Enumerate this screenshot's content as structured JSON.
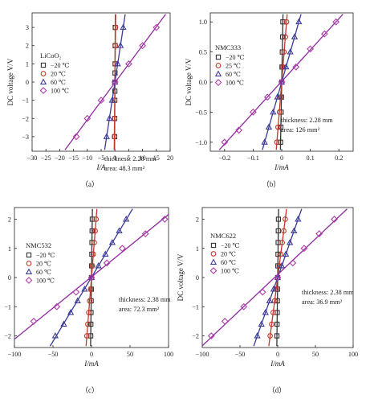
{
  "chart_data": [
    {
      "type": "scatter",
      "caption": "（a）",
      "xlabel": "I/A",
      "ylabel": "DC voltage V/V",
      "xlim": [
        -30,
        20
      ],
      "ylim": [
        -3.8,
        3.8
      ],
      "xticks": [
        -30,
        -25,
        -20,
        -15,
        -10,
        -5,
        0,
        5,
        10,
        15,
        20
      ],
      "yticks": [
        -3,
        -2,
        -1,
        0,
        1,
        2,
        3
      ],
      "legend_title": "LiCoO₂",
      "legend_position": "left",
      "annotations": [
        "thickness: 2.28 mm",
        "area: 48.3 mm²"
      ],
      "series": [
        {
          "name": "−20 ℃",
          "marker": "square",
          "color": "#333333",
          "fit_color": "#333333",
          "x": [
            0.1,
            0.08,
            0.06,
            0.03,
            0,
            -0.03,
            -0.06,
            -0.08,
            -0.1
          ],
          "y": [
            3,
            2,
            1,
            0.5,
            0,
            -0.5,
            -1,
            -2,
            -3
          ]
        },
        {
          "name": "20 ℃",
          "marker": "circle",
          "color": "#c0392b",
          "fit_color": "#c0392b",
          "x": [
            0.2,
            0.15,
            0.1,
            0,
            -0.1,
            -0.15,
            -0.2
          ],
          "y": [
            3,
            2,
            1,
            0,
            -1,
            -2,
            -3
          ]
        },
        {
          "name": "60 ℃",
          "marker": "triangle",
          "color": "#3b3b9a",
          "fit_color": "#3b3b9a",
          "x": [
            3,
            2,
            1,
            0,
            -1,
            -2,
            -3
          ],
          "y": [
            3,
            2,
            1,
            0,
            -1,
            -2,
            -3
          ]
        },
        {
          "name": "100 ℃",
          "marker": "diamond",
          "color": "#b03aa9",
          "fit_color": "#8e2aa0",
          "x": [
            15,
            10,
            5,
            0,
            -5,
            -10,
            -14
          ],
          "y": [
            3,
            2,
            1,
            0,
            -1,
            -2,
            -3
          ]
        }
      ]
    },
    {
      "type": "scatter",
      "caption": "（b）",
      "xlabel": "I/mA",
      "ylabel": "DC voltage V/V",
      "xlim": [
        -0.25,
        0.25
      ],
      "ylim": [
        -1.15,
        1.15
      ],
      "xticks": [
        -0.2,
        -0.1,
        0,
        0.1,
        0.2
      ],
      "yticks": [
        -1.0,
        -0.5,
        0,
        0.5,
        1.0
      ],
      "legend_title": "NMC333",
      "legend_position": "left",
      "annotations": [
        "thickness: 2.28 mm",
        "area: 126 mm²"
      ],
      "series": [
        {
          "name": "−20 ℃",
          "marker": "square",
          "color": "#333333",
          "fit_color": "#333333",
          "x": [
            0.004,
            0.003,
            0.002,
            0.001,
            0,
            -0.001,
            -0.002,
            -0.003,
            -0.004
          ],
          "y": [
            1,
            0.75,
            0.5,
            0.25,
            0,
            -0.25,
            -0.5,
            -0.75,
            -1
          ]
        },
        {
          "name": "25 ℃",
          "marker": "circle",
          "color": "#c0392b",
          "fit_color": "#c0392b",
          "x": [
            0.017,
            0.013,
            0.008,
            0.004,
            0,
            -0.004,
            -0.008,
            -0.013,
            -0.017
          ],
          "y": [
            1,
            0.75,
            0.5,
            0.25,
            0,
            -0.25,
            -0.5,
            -0.75,
            -1
          ]
        },
        {
          "name": "60 ℃",
          "marker": "triangle",
          "color": "#3b3b9a",
          "fit_color": "#3b3b9a",
          "x": [
            0.06,
            0.045,
            0.03,
            0.015,
            0,
            -0.015,
            -0.03,
            -0.045,
            -0.06
          ],
          "y": [
            1,
            0.75,
            0.5,
            0.25,
            0,
            -0.25,
            -0.5,
            -0.75,
            -1
          ]
        },
        {
          "name": "100 ℃",
          "marker": "diamond",
          "color": "#b03aa9",
          "fit_color": "#8e2aa0",
          "x": [
            0.19,
            0.15,
            0.1,
            0.05,
            0,
            -0.05,
            -0.1,
            -0.15,
            -0.2
          ],
          "y": [
            1,
            0.8,
            0.55,
            0.25,
            0,
            -0.25,
            -0.5,
            -0.8,
            -1
          ]
        }
      ]
    },
    {
      "type": "scatter",
      "caption": "（c）",
      "xlabel": "I/mA",
      "ylabel": "DC voltage V/V",
      "xlim": [
        -100,
        100
      ],
      "ylim": [
        -2.4,
        2.4
      ],
      "xticks": [
        -100,
        -50,
        0,
        50,
        100
      ],
      "yticks": [
        -2,
        -1,
        0,
        1,
        2
      ],
      "legend_title": "NMC532",
      "legend_position": "left",
      "annotations": [
        "thickness: 2.38 mm",
        "area: 72.3 mm²"
      ],
      "series": [
        {
          "name": "−20 ℃",
          "marker": "square",
          "color": "#333333",
          "fit_color": "#333333",
          "x": [
            1,
            0.8,
            0.6,
            0.4,
            0.2,
            0,
            -0.2,
            -0.4,
            -0.6,
            -0.8,
            -1
          ],
          "y": [
            2,
            1.6,
            1.2,
            0.8,
            0.4,
            0,
            -0.4,
            -0.8,
            -1.2,
            -1.6,
            -2
          ]
        },
        {
          "name": "20 ℃",
          "marker": "circle",
          "color": "#c0392b",
          "fit_color": "#c0392b",
          "x": [
            6,
            4.8,
            3.6,
            2.4,
            1.2,
            0,
            -1.2,
            -2.4,
            -3.6,
            -4.8,
            -6
          ],
          "y": [
            2,
            1.6,
            1.2,
            0.8,
            0.4,
            0,
            -0.4,
            -0.8,
            -1.2,
            -1.6,
            -2
          ]
        },
        {
          "name": "60 ℃",
          "marker": "triangle",
          "color": "#3b3b9a",
          "fit_color": "#3b3b9a",
          "x": [
            45,
            36,
            27,
            18,
            9,
            0,
            -9,
            -18,
            -27,
            -36,
            -47
          ],
          "y": [
            2,
            1.6,
            1.2,
            0.8,
            0.4,
            0,
            -0.4,
            -0.8,
            -1.2,
            -1.6,
            -2
          ]
        },
        {
          "name": "100 ℃",
          "marker": "diamond",
          "color": "#b03aa9",
          "fit_color": "#8e2aa0",
          "x": [
            95,
            70,
            40,
            20,
            0,
            -20,
            -45,
            -75
          ],
          "y": [
            2,
            1.5,
            1,
            0.5,
            0,
            -0.5,
            -1,
            -1.5
          ]
        }
      ]
    },
    {
      "type": "scatter",
      "caption": "（d）",
      "xlabel": "I/mA",
      "ylabel": "DC voltage V/V",
      "xlim": [
        -100,
        100
      ],
      "ylim": [
        -2.4,
        2.4
      ],
      "xticks": [
        -100,
        -50,
        0,
        50,
        100
      ],
      "yticks": [
        -2,
        -1,
        0,
        1,
        2
      ],
      "legend_title": "NMC622",
      "legend_position": "left",
      "annotations": [
        "thickness: 2.38 mm",
        "area: 36.9 mm²"
      ],
      "series": [
        {
          "name": "−20 ℃",
          "marker": "square",
          "color": "#333333",
          "fit_color": "#333333",
          "x": [
            1,
            0.8,
            0.6,
            0.4,
            0.2,
            0,
            -0.2,
            -0.4,
            -0.6,
            -0.8,
            -1
          ],
          "y": [
            2,
            1.6,
            1.2,
            0.8,
            0.4,
            0,
            -0.4,
            -0.8,
            -1.2,
            -1.6,
            -2
          ]
        },
        {
          "name": "20 ℃",
          "marker": "circle",
          "color": "#c0392b",
          "fit_color": "#c0392b",
          "x": [
            10,
            8,
            6,
            4,
            2,
            0,
            -2,
            -4,
            -6,
            -8,
            -10
          ],
          "y": [
            2,
            1.6,
            1.2,
            0.8,
            0.4,
            0,
            -0.4,
            -0.8,
            -1.2,
            -1.6,
            -2
          ]
        },
        {
          "name": "60 ℃",
          "marker": "triangle",
          "color": "#3b3b9a",
          "fit_color": "#3b3b9a",
          "x": [
            27,
            21.6,
            16.2,
            10.8,
            5.4,
            0,
            -5.4,
            -10.8,
            -16.2,
            -21.6,
            -27
          ],
          "y": [
            2,
            1.6,
            1.2,
            0.8,
            0.4,
            0,
            -0.4,
            -0.8,
            -1.2,
            -1.6,
            -2
          ]
        },
        {
          "name": "100 ℃",
          "marker": "diamond",
          "color": "#b03aa9",
          "fit_color": "#8e2aa0",
          "x": [
            75,
            55,
            35,
            20,
            0,
            -20,
            -45,
            -70,
            -88
          ],
          "y": [
            2,
            1.5,
            1,
            0.5,
            0,
            -0.5,
            -1,
            -1.5,
            -2
          ]
        }
      ]
    }
  ]
}
